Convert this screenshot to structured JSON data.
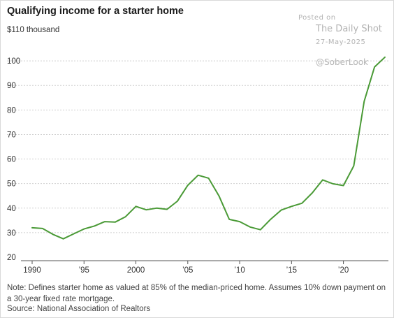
{
  "header": {
    "title": "Qualifying income for a starter home",
    "ytop_label": "$110 thousand"
  },
  "watermark": {
    "posted": "Posted on",
    "source_name": "The Daily Shot",
    "date": "27-May-2025",
    "handle": "@SoberLook"
  },
  "footer": {
    "note": "Note: Defines starter home as valued at 85% of the median-priced home. Assumes 10% down payment on a 30-year fixed rate mortgage.",
    "source": "Source: National Association of Realtors"
  },
  "colors": {
    "line": "#4a9a36",
    "grid": "#cfcfcf",
    "axis": "#555555"
  },
  "chart_data": {
    "type": "line",
    "x": [
      1990,
      1991,
      1992,
      1993,
      1994,
      1995,
      1996,
      1997,
      1998,
      1999,
      2000,
      2001,
      2002,
      2003,
      2004,
      2005,
      2006,
      2007,
      2008,
      2009,
      2010,
      2011,
      2012,
      2013,
      2014,
      2015,
      2016,
      2017,
      2018,
      2019,
      2020,
      2021,
      2022,
      2023,
      2024
    ],
    "series": [
      {
        "values": [
          32,
          31.7,
          29.3,
          27.5,
          29.5,
          31.5,
          32.7,
          34.5,
          34.3,
          36.5,
          40.7,
          39.3,
          40,
          39.5,
          42.8,
          49.3,
          53.4,
          52.2,
          45,
          35.4,
          34.5,
          32.3,
          31.2,
          35.5,
          39.2,
          40.7,
          42,
          46.2,
          51.5,
          49.9,
          49.2,
          57.2,
          83.5,
          97.5,
          101.5
        ]
      }
    ],
    "ylim": [
      20,
      110
    ],
    "yticks": [
      20,
      30,
      40,
      50,
      60,
      70,
      80,
      90,
      100
    ],
    "xticks": [
      {
        "value": 1990,
        "label": "1990"
      },
      {
        "value": 1995,
        "label": "’95"
      },
      {
        "value": 2000,
        "label": "2000"
      },
      {
        "value": 2005,
        "label": "’05"
      },
      {
        "value": 2010,
        "label": "’10"
      },
      {
        "value": 2015,
        "label": "’15"
      },
      {
        "value": 2020,
        "label": "’20"
      }
    ],
    "grid": true
  }
}
